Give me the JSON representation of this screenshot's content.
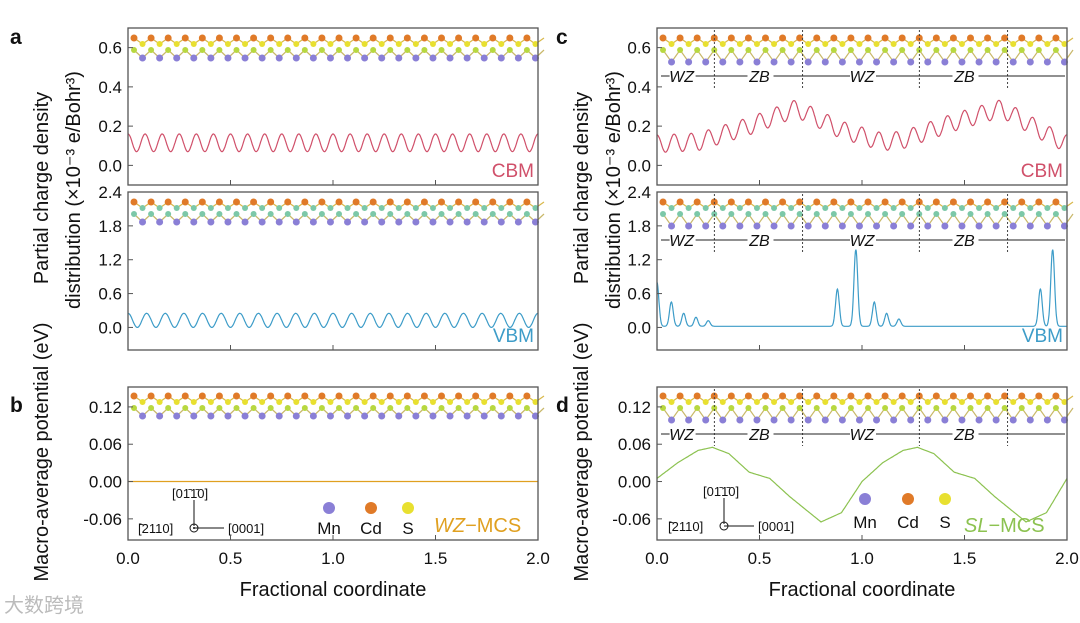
{
  "panel_letters": [
    "a",
    "b",
    "c",
    "d"
  ],
  "left": {
    "ylabel_line1": "Partial charge density",
    "ylabel_line2": "distribution (×10⁻³ e/Bohr³)",
    "ylabel_potential": "Macro-average potential (eV)",
    "xlabel": "Fractional coordinate",
    "system_label_italic": "WZ",
    "system_label_rest": "−MCS"
  },
  "right": {
    "ylabel_line1": "Partial charge density",
    "ylabel_line2": "distribution (×10⁻³ e/Bohr³)",
    "ylabel_potential": "Macro-average potential (eV)",
    "xlabel": "Fractional coordinate",
    "system_label_italic": "SL",
    "system_label_rest": "−MCS",
    "phase_labels": [
      "WZ",
      "ZB",
      "WZ",
      "ZB"
    ]
  },
  "legend": {
    "atoms": [
      {
        "label": "Mn",
        "color": "#8a7fd6"
      },
      {
        "label": "Cd",
        "color": "#e07a28"
      },
      {
        "label": "S",
        "color": "#e8e030"
      }
    ],
    "axes": {
      "up": "[01̄1̄0]",
      "right": "[0001]",
      "out": "[̄2110]"
    }
  },
  "watermark": "大数跨境",
  "colors": {
    "cbm": "#d0506a",
    "vbm": "#3d9cc8",
    "pot_wz": "#e0a020",
    "pot_sl": "#8cc250"
  },
  "chart_data": [
    {
      "id": "a-cbm",
      "type": "line",
      "label": "CBM",
      "ylim": [
        -0.1,
        0.7
      ],
      "xlim": [
        0,
        2
      ],
      "yticks": [
        0,
        0.2,
        0.4,
        0.6
      ],
      "ytick_labels": [
        "0.0",
        "0.2",
        "0.4",
        "0.6"
      ],
      "series": {
        "kind": "oscillation",
        "min": 0.07,
        "max": 0.16,
        "periods": 24
      }
    },
    {
      "id": "a-vbm",
      "type": "line",
      "label": "VBM",
      "ylim": [
        -0.4,
        2.4
      ],
      "xlim": [
        0,
        2
      ],
      "yticks": [
        0,
        0.6,
        1.2,
        1.8,
        2.4
      ],
      "ytick_labels": [
        "0.0",
        "0.6",
        "1.2",
        "1.8",
        "2.4"
      ],
      "series": {
        "kind": "oscillation",
        "min": 0.0,
        "max": 0.25,
        "periods": 22
      }
    },
    {
      "id": "b",
      "type": "line",
      "ylim": [
        -0.094,
        0.152
      ],
      "xlim": [
        0,
        2
      ],
      "yticks": [
        -0.06,
        0,
        0.06,
        0.12
      ],
      "ytick_labels": [
        "-0.06",
        "0.00",
        "0.06",
        "0.12"
      ],
      "xticks": [
        0,
        0.5,
        1,
        1.5,
        2
      ],
      "xtick_labels": [
        "0.0",
        "0.5",
        "1.0",
        "1.5",
        "2.0"
      ],
      "series": {
        "kind": "points",
        "x": [
          0,
          2
        ],
        "y": [
          0,
          0
        ]
      }
    },
    {
      "id": "c-cbm",
      "type": "line",
      "label": "CBM",
      "ylim": [
        -0.1,
        0.7
      ],
      "xlim": [
        0,
        2
      ],
      "yticks": [
        0,
        0.2,
        0.4,
        0.6
      ],
      "ytick_labels": [
        "0.0",
        "0.2",
        "0.4",
        "0.6"
      ],
      "series": {
        "kind": "modulated",
        "periods": 24,
        "amplitude": 0.045,
        "envelope_x": [
          0,
          0.2,
          0.45,
          0.68,
          0.9,
          1.1,
          1.2,
          1.45,
          1.68,
          1.9,
          2.0
        ],
        "envelope_y": [
          0.11,
          0.12,
          0.2,
          0.29,
          0.18,
          0.12,
          0.13,
          0.22,
          0.29,
          0.16,
          0.11
        ]
      }
    },
    {
      "id": "c-vbm",
      "type": "line",
      "label": "VBM",
      "ylim": [
        -0.4,
        2.4
      ],
      "xlim": [
        0,
        2
      ],
      "yticks": [
        0,
        0.6,
        1.2,
        1.8,
        2.4
      ],
      "ytick_labels": [
        "0.0",
        "0.6",
        "1.2",
        "1.8",
        "2.4"
      ],
      "series": {
        "kind": "peaks",
        "baseline": 0.02,
        "peak_x": [
          0.0,
          0.07,
          0.13,
          0.19,
          0.25,
          0.88,
          0.97,
          1.06,
          1.12,
          1.18,
          1.87,
          1.93
        ],
        "peak_y": [
          0.8,
          0.45,
          0.25,
          0.18,
          0.12,
          0.68,
          1.38,
          0.45,
          0.25,
          0.15,
          0.68,
          1.38
        ]
      }
    },
    {
      "id": "d",
      "type": "line",
      "ylim": [
        -0.094,
        0.152
      ],
      "xlim": [
        0,
        2
      ],
      "yticks": [
        -0.06,
        0,
        0.06,
        0.12
      ],
      "ytick_labels": [
        "-0.06",
        "0.00",
        "0.06",
        "0.12"
      ],
      "xticks": [
        0,
        0.5,
        1,
        1.5,
        2
      ],
      "xtick_labels": [
        "0.0",
        "0.5",
        "1.0",
        "1.5",
        "2.0"
      ],
      "phase_boundaries": [
        0.28,
        0.71,
        1.28,
        1.71
      ],
      "series": {
        "kind": "points",
        "x": [
          0,
          0.1,
          0.2,
          0.27,
          0.35,
          0.45,
          0.55,
          0.65,
          0.8,
          0.9,
          1.0,
          1.1,
          1.2,
          1.27,
          1.35,
          1.45,
          1.55,
          1.65,
          1.8,
          1.9,
          2.0
        ],
        "y": [
          0.005,
          0.03,
          0.05,
          0.055,
          0.045,
          0.015,
          0.005,
          -0.025,
          -0.065,
          -0.05,
          0.0,
          0.03,
          0.05,
          0.055,
          0.045,
          0.015,
          0.005,
          -0.025,
          -0.065,
          -0.05,
          0.005
        ]
      }
    }
  ]
}
